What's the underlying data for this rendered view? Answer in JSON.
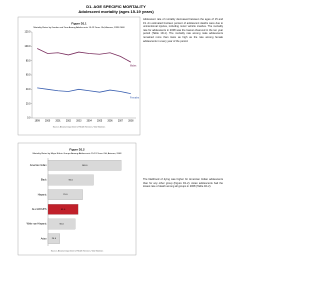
{
  "header": {
    "title": "D1. AGE SPECIFIC MORTALITY",
    "subtitle": "Adolescent mortality (ages 15-19 years)"
  },
  "text": [
    "Adolescent rate of mortality decreased between the ages of 15 and 19. An estimated fourteen percent of adolescent deaths were due to unintentional injuries, including motor vehicle crashes. The mortality rate for adolescents in 2008 was the lowest observed in the ten year period (Table 1D-1). The mortality rate among male adolescents remained more than twice as high as the rate among female adolescents in every year of the period.",
    "The likelihood of dying was higher for American Indian adolescents than for any other group (Figure D1-2). Asian adolescents had the lowest rate of death among all groups in 2008 (Table 1D-2)."
  ],
  "chart_data": [
    {
      "type": "line",
      "title": "Figure D1.1",
      "subtitle": "Mortality Rates by Gender and Year Among Adolescents 15-19 Years Old, Arizona, 1999-2008",
      "categories": [
        "1999",
        "2000",
        "2001",
        "2002",
        "2003",
        "2004",
        "2005",
        "2006",
        "2007",
        "2008"
      ],
      "series": [
        {
          "name": "Males",
          "color": "#7a2f5f",
          "values": [
            97,
            90,
            91,
            88,
            92,
            90,
            89,
            91,
            86,
            78
          ]
        },
        {
          "name": "Females",
          "color": "#3a5fb0",
          "values": [
            42,
            40,
            38,
            37,
            40,
            38,
            36,
            39,
            37,
            34
          ]
        }
      ],
      "ylim": [
        0,
        120
      ],
      "yticks": [
        {
          "value": 0,
          "label": "0.0"
        },
        {
          "value": 20,
          "label": "20.0"
        },
        {
          "value": 40,
          "label": "40.0"
        },
        {
          "value": 60,
          "label": "60.0"
        },
        {
          "value": 80,
          "label": "80.0"
        },
        {
          "value": 100,
          "label": "100.0"
        },
        {
          "value": 120,
          "label": "120.0"
        }
      ],
      "grid": false,
      "note": "Source: Arizona Department of Health Services, Vital Statistics"
    },
    {
      "type": "hbar",
      "title": "Figure D1.2",
      "subtitle": "Mortality Rates by Major Ethnic Groups Among Adolescents 15-19 Years Old, Arizona, 2008",
      "categories": [
        "American Indian",
        "Black",
        "Hispanic",
        "ALL GROUPS",
        "White non-Hispanic",
        "Asian"
      ],
      "values": [
        148,
        92,
        70,
        61,
        55,
        24
      ],
      "value_labels": [
        "148.0",
        "92.0",
        "70.0",
        "61.0",
        "55.0",
        "24.0"
      ],
      "colors": [
        "#d9d9d9",
        "#d9d9d9",
        "#d9d9d9",
        "#c0202a",
        "#d9d9d9",
        "#d9d9d9"
      ],
      "xlim": [
        0,
        170
      ],
      "note": "Source: Arizona Department of Health Services, Vital Statistics"
    }
  ]
}
